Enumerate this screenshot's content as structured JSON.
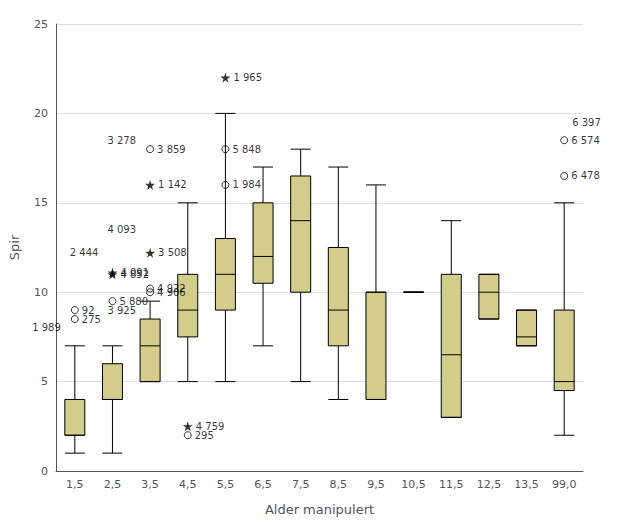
{
  "chart_data": {
    "type": "boxplot",
    "xlabel": "Alder manipulert",
    "ylabel": "Spir",
    "categories": [
      "1,5",
      "2,5",
      "3,5",
      "4,5",
      "5,5",
      "6,5",
      "7,5",
      "8,5",
      "9,5",
      "10,5",
      "11,5",
      "12,5",
      "13,5",
      "99,0"
    ],
    "boxes": [
      {
        "whislo": 1.0,
        "q1": 2.0,
        "median": 2.0,
        "q3": 4.0,
        "whishi": 7.0
      },
      {
        "whislo": 1.0,
        "q1": 4.0,
        "median": 4.0,
        "q3": 6.0,
        "whishi": 7.0
      },
      {
        "whislo": 5.0,
        "q1": 5.0,
        "median": 7.0,
        "q3": 8.5,
        "whishi": 9.5
      },
      {
        "whislo": 5.0,
        "q1": 7.5,
        "median": 9.0,
        "q3": 11.0,
        "whishi": 15.0
      },
      {
        "whislo": 5.0,
        "q1": 9.0,
        "median": 11.0,
        "q3": 13.0,
        "whishi": 20.0
      },
      {
        "whislo": 7.0,
        "q1": 10.5,
        "median": 12.0,
        "q3": 15.0,
        "whishi": 17.0
      },
      {
        "whislo": 5.0,
        "q1": 10.0,
        "median": 14.0,
        "q3": 16.5,
        "whishi": 18.0
      },
      {
        "whislo": 4.0,
        "q1": 7.0,
        "median": 9.0,
        "q3": 12.5,
        "whishi": 17.0
      },
      {
        "whislo": 4.0,
        "q1": 4.0,
        "median": 10.0,
        "q3": 10.0,
        "whishi": 16.0
      },
      {
        "whislo": 10.0,
        "q1": 10.0,
        "median": 10.0,
        "q3": 10.0,
        "whishi": 10.0
      },
      {
        "whislo": 3.0,
        "q1": 3.0,
        "median": 6.5,
        "q3": 11.0,
        "whishi": 14.0
      },
      {
        "whislo": 8.5,
        "q1": 8.5,
        "median": 10.0,
        "q3": 11.0,
        "whishi": 11.0
      },
      {
        "whislo": 7.0,
        "q1": 7.0,
        "median": 7.5,
        "q3": 9.0,
        "whishi": 9.0
      },
      {
        "whislo": 2.0,
        "q1": 4.5,
        "median": 5.0,
        "q3": 9.0,
        "whishi": 15.0
      }
    ],
    "outliers": [
      {
        "category": "1,5",
        "y": 9.0,
        "label": "92",
        "marker": "circle"
      },
      {
        "category": "1,5",
        "y": 8.5,
        "label": "275",
        "marker": "circle"
      },
      {
        "category": "2,5",
        "y": 9.5,
        "label": "5 880",
        "marker": "circle"
      },
      {
        "category": "2,5",
        "y": 11.0,
        "label": "4 852",
        "marker": "star"
      },
      {
        "category": "2,5",
        "y": 11.1,
        "label": "4 091",
        "marker": "star"
      },
      {
        "category": "3,5",
        "y": 10.0,
        "label": "4 906",
        "marker": "circle"
      },
      {
        "category": "3,5",
        "y": 10.2,
        "label": "4 922",
        "marker": "circle"
      },
      {
        "category": "3,5",
        "y": 18.0,
        "label": "3 859",
        "marker": "circle"
      },
      {
        "category": "3,5",
        "y": 12.2,
        "label": "3 508",
        "marker": "star"
      },
      {
        "category": "3,5",
        "y": 16.0,
        "label": "1 142",
        "marker": "star"
      },
      {
        "category": "4,5",
        "y": 2.0,
        "label": "295",
        "marker": "circle"
      },
      {
        "category": "4,5",
        "y": 2.5,
        "label": "4 759",
        "marker": "star"
      },
      {
        "category": "5,5",
        "y": 18.0,
        "label": "5 848",
        "marker": "circle"
      },
      {
        "category": "5,5",
        "y": 16.0,
        "label": "1 984",
        "marker": "circle"
      },
      {
        "category": "5,5",
        "y": 22.0,
        "label": "1 965",
        "marker": "star"
      },
      {
        "category": "99,0",
        "y": 18.5,
        "label": "6 574",
        "marker": "circle"
      },
      {
        "category": "99,0",
        "y": 16.5,
        "label": "6 478",
        "marker": "circle"
      }
    ],
    "annotations": [
      {
        "category": "1,5",
        "y": 8.0,
        "label": "1 989",
        "side": "left"
      },
      {
        "category": "3,5",
        "y": 18.5,
        "label": "3 278",
        "side": "left"
      },
      {
        "category": "3,5",
        "y": 13.5,
        "label": "4 093",
        "side": "left"
      },
      {
        "category": "3,5",
        "y": 9.0,
        "label": "3 925",
        "side": "left"
      },
      {
        "category": "99,0",
        "y": 19.5,
        "label": "6 397",
        "side": "right"
      },
      {
        "category": "2,5",
        "y": 12.2,
        "label": "2 444",
        "side": "left"
      }
    ],
    "color": "#d4cc8a",
    "ylim": [
      0,
      25
    ],
    "yticks": [
      0,
      5,
      10,
      15,
      20,
      25
    ],
    "grid": true
  }
}
